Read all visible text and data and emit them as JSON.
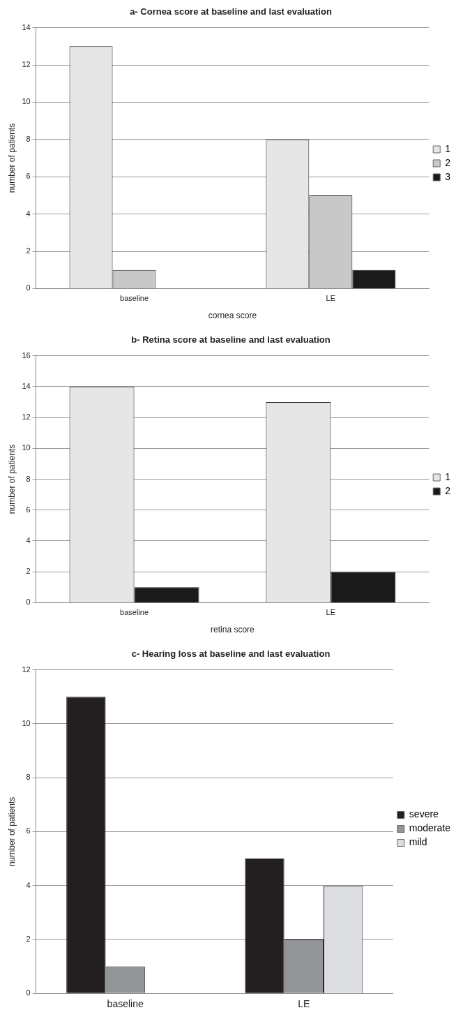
{
  "chart_data": [
    {
      "type": "bar",
      "title": "a- Cornea score at baseline and last evaluation",
      "xlabel": "cornea score",
      "ylabel": "number of patients",
      "categories": [
        "baseline",
        "LE"
      ],
      "series": [
        {
          "name": "1",
          "color": "#e6e6e6",
          "values": [
            13,
            8
          ]
        },
        {
          "name": "2",
          "color": "#c8c8c8",
          "values": [
            1,
            5
          ]
        },
        {
          "name": "3",
          "color": "#1a1a1a",
          "values": [
            null,
            1
          ]
        }
      ],
      "ylim": [
        0,
        14
      ],
      "yticks": [
        0,
        2,
        4,
        6,
        8,
        10,
        12,
        14
      ],
      "grid": "y",
      "legend": "right"
    },
    {
      "type": "bar",
      "title": "b- Retina score at baseline and last evaluation",
      "xlabel": "retina score",
      "ylabel": "number of patients",
      "categories": [
        "baseline",
        "LE"
      ],
      "series": [
        {
          "name": "1",
          "color": "#e6e6e6",
          "values": [
            14,
            13
          ]
        },
        {
          "name": "2",
          "color": "#1a1a1a",
          "values": [
            1,
            2
          ]
        }
      ],
      "ylim": [
        0,
        16
      ],
      "yticks": [
        0,
        2,
        4,
        6,
        8,
        10,
        12,
        14,
        16
      ],
      "grid": "y",
      "legend": "right"
    },
    {
      "type": "bar",
      "title": "c- Hearing loss at baseline and last evaluation",
      "ylabel": "number of patients",
      "categories": [
        "baseline",
        "LE"
      ],
      "series": [
        {
          "name": "severe",
          "color": "#231f20",
          "values": [
            11,
            5
          ]
        },
        {
          "name": "moderate",
          "color": "#939598",
          "values": [
            1,
            2
          ]
        },
        {
          "name": "mild",
          "color": "#dcdde0",
          "values": [
            null,
            4
          ]
        }
      ],
      "ylim": [
        0,
        12
      ],
      "yticks": [
        0,
        2,
        4,
        6,
        8,
        10,
        12
      ],
      "grid": "y",
      "legend": "right"
    }
  ]
}
